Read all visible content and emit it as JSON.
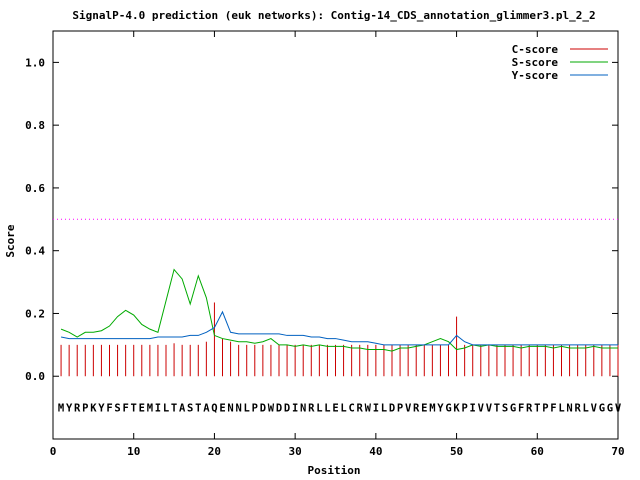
{
  "chart_data": {
    "type": "line",
    "title": "SignalP-4.0 prediction (euk networks): Contig-14_CDS_annotation_glimmer3.pl_2_2",
    "xlabel": "Position",
    "ylabel": "Score",
    "xlim": [
      0,
      70
    ],
    "ylim": [
      -0.2,
      1.1
    ],
    "x_ticks": [
      0,
      10,
      20,
      30,
      40,
      50,
      60,
      70
    ],
    "x_tick_labels": [
      "0",
      "10",
      "20",
      "30",
      "40",
      "50",
      "60",
      "70"
    ],
    "y_ticks": [
      0.0,
      0.2,
      0.4,
      0.6,
      0.8,
      1.0
    ],
    "y_tick_labels": [
      "0.0",
      "0.2",
      "0.4",
      "0.6",
      "0.8",
      "1.0"
    ],
    "legend_position": "top-right",
    "threshold": {
      "value": 0.5,
      "color": "#ff00ff",
      "style": "dotted"
    },
    "sequence": "MYRPKYFSFTEMILTASTAQENNLPDWDDINRLLELCRWILDPVREMYGKPIVVTSGFRTPFLNRLVGGV",
    "series": [
      {
        "name": "C-score",
        "style": "impulses",
        "color": "#cc0000",
        "values": [
          0.1,
          0.1,
          0.1,
          0.1,
          0.1,
          0.1,
          0.1,
          0.1,
          0.1,
          0.1,
          0.1,
          0.1,
          0.1,
          0.1,
          0.105,
          0.1,
          0.1,
          0.1,
          0.11,
          0.235,
          0.12,
          0.11,
          0.1,
          0.1,
          0.1,
          0.1,
          0.1,
          0.1,
          0.1,
          0.1,
          0.1,
          0.1,
          0.1,
          0.1,
          0.1,
          0.1,
          0.1,
          0.1,
          0.1,
          0.1,
          0.1,
          0.1,
          0.1,
          0.1,
          0.1,
          0.1,
          0.1,
          0.1,
          0.1,
          0.19,
          0.1,
          0.1,
          0.1,
          0.1,
          0.1,
          0.1,
          0.1,
          0.1,
          0.1,
          0.1,
          0.1,
          0.1,
          0.1,
          0.1,
          0.1,
          0.1,
          0.1,
          0.1,
          0.1,
          0.1
        ]
      },
      {
        "name": "S-score",
        "style": "lines",
        "color": "#00aa00",
        "values": [
          0.15,
          0.14,
          0.125,
          0.14,
          0.14,
          0.145,
          0.16,
          0.19,
          0.21,
          0.195,
          0.165,
          0.15,
          0.14,
          0.24,
          0.34,
          0.31,
          0.23,
          0.32,
          0.25,
          0.13,
          0.12,
          0.115,
          0.11,
          0.11,
          0.105,
          0.11,
          0.12,
          0.1,
          0.1,
          0.095,
          0.1,
          0.095,
          0.1,
          0.095,
          0.095,
          0.095,
          0.09,
          0.09,
          0.085,
          0.085,
          0.085,
          0.08,
          0.09,
          0.09,
          0.095,
          0.1,
          0.11,
          0.12,
          0.11,
          0.085,
          0.09,
          0.1,
          0.095,
          0.1,
          0.095,
          0.095,
          0.095,
          0.09,
          0.095,
          0.095,
          0.095,
          0.09,
          0.095,
          0.09,
          0.09,
          0.09,
          0.095,
          0.09,
          0.09,
          0.09
        ]
      },
      {
        "name": "Y-score",
        "style": "lines",
        "color": "#0060c0",
        "values": [
          0.125,
          0.12,
          0.12,
          0.12,
          0.12,
          0.12,
          0.12,
          0.12,
          0.12,
          0.12,
          0.12,
          0.12,
          0.125,
          0.125,
          0.125,
          0.125,
          0.13,
          0.13,
          0.14,
          0.155,
          0.205,
          0.14,
          0.135,
          0.135,
          0.135,
          0.135,
          0.135,
          0.135,
          0.13,
          0.13,
          0.13,
          0.125,
          0.125,
          0.12,
          0.12,
          0.115,
          0.11,
          0.11,
          0.11,
          0.105,
          0.1,
          0.1,
          0.1,
          0.1,
          0.1,
          0.1,
          0.1,
          0.1,
          0.1,
          0.13,
          0.11,
          0.1,
          0.1,
          0.1,
          0.1,
          0.1,
          0.1,
          0.1,
          0.1,
          0.1,
          0.1,
          0.1,
          0.1,
          0.1,
          0.1,
          0.1,
          0.1,
          0.1,
          0.1,
          0.1
        ]
      }
    ]
  }
}
